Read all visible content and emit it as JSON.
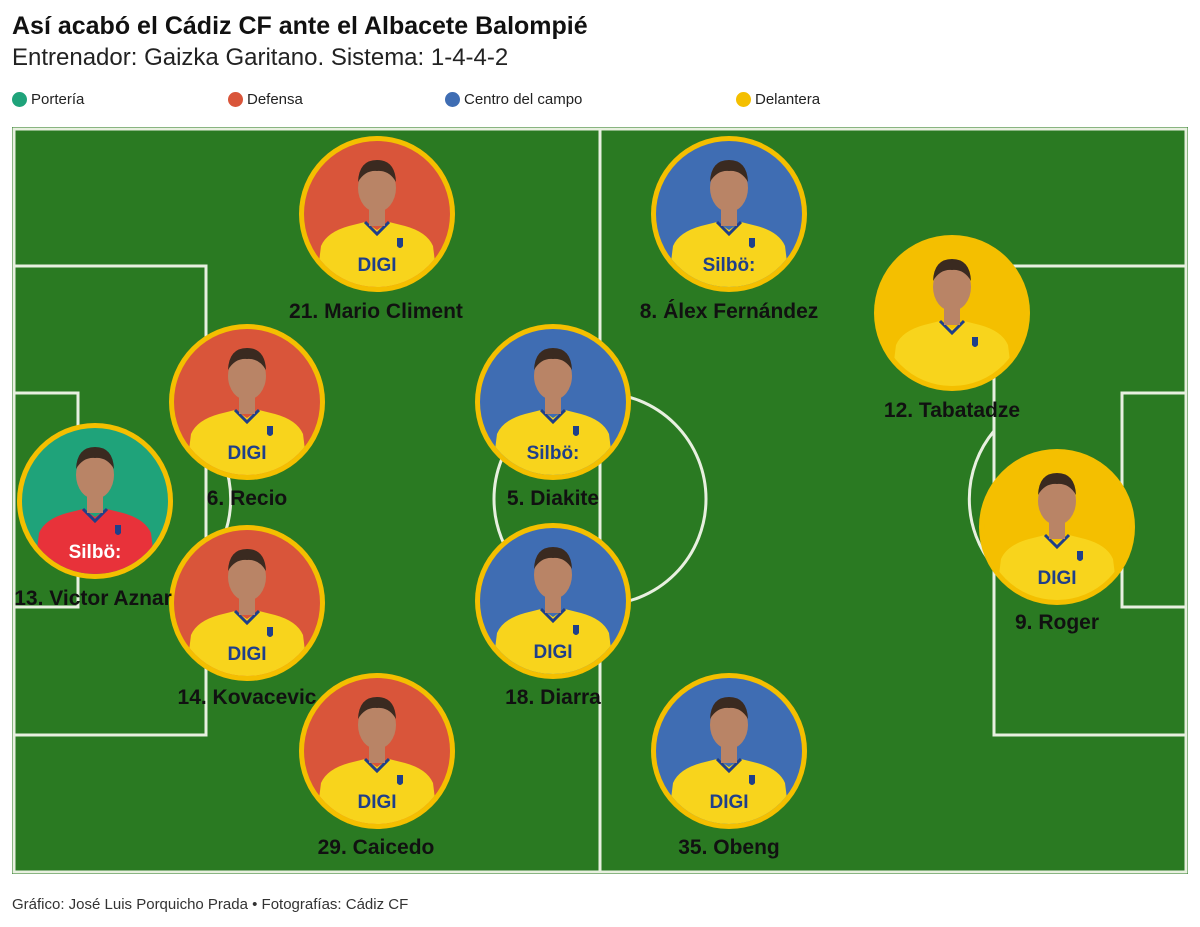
{
  "header": {
    "title": "Así acabó el Cádiz CF ante el Albacete Balompié",
    "subtitle": "Entrenador: Gaizka Garitano. Sistema: 1-4-4-2"
  },
  "legend": [
    {
      "label": "Portería",
      "color": "#1fa37a"
    },
    {
      "label": "Defensa",
      "color": "#d9553a"
    },
    {
      "label": "Centro del campo",
      "color": "#3f6db3"
    },
    {
      "label": "Delantera",
      "color": "#f4bf00"
    }
  ],
  "colors": {
    "pitch": "#2a7a22",
    "lines": "#e8f0e0",
    "ring": "#f4bf00",
    "shirt": "#f8d41c",
    "skin": "#b98466"
  },
  "players": [
    {
      "label": "13. Victor Aznar",
      "role": "Portería",
      "shirt_text": "Silbö:"
    },
    {
      "label": "21. Mario Climent",
      "role": "Defensa",
      "shirt_text": "DIGI"
    },
    {
      "label": "6. Recio",
      "role": "Defensa",
      "shirt_text": "DIGI"
    },
    {
      "label": "14. Kovacevic",
      "role": "Defensa",
      "shirt_text": "DIGI"
    },
    {
      "label": "29. Caicedo",
      "role": "Defensa",
      "shirt_text": "DIGI"
    },
    {
      "label": "5. Diakite",
      "role": "Centro del campo",
      "shirt_text": "Silbö:"
    },
    {
      "label": "18. Diarra",
      "role": "Centro del campo",
      "shirt_text": "DIGI"
    },
    {
      "label": "8. Álex Fernández",
      "role": "Centro del campo",
      "shirt_text": "Silbö:"
    },
    {
      "label": "35. Obeng",
      "role": "Centro del campo",
      "shirt_text": "DIGI"
    },
    {
      "label": "12. Tabatadze",
      "role": "Delantera",
      "shirt_text": ""
    },
    {
      "label": "9. Roger",
      "role": "Delantera",
      "shirt_text": "DIGI"
    }
  ],
  "footer": "Gráfico: José Luis Porquicho Prada • Fotografías: Cádiz CF"
}
